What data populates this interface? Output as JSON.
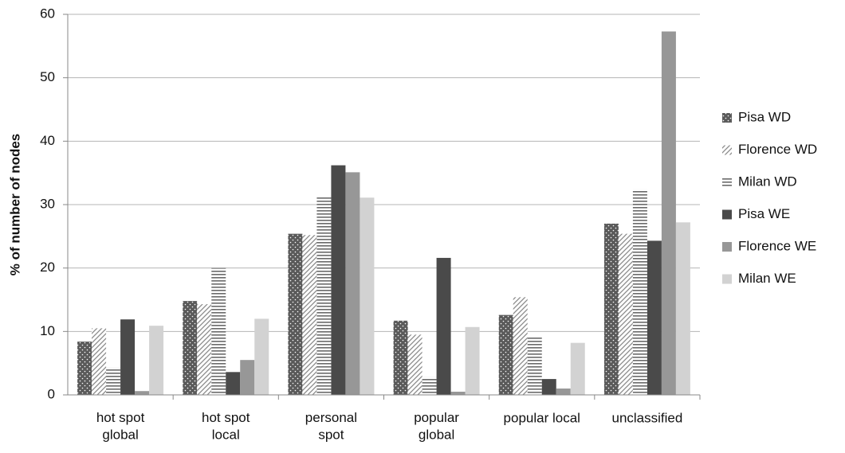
{
  "chart_data": {
    "type": "bar",
    "y_label": "% of number of nodes",
    "categories": [
      "hot spot\nglobal",
      "hot spot\nlocal",
      "personal\nspot",
      "popular\nglobal",
      "popular local",
      "unclassified"
    ],
    "series": [
      {
        "name": "Pisa WD",
        "color": "#5a5a5a",
        "pattern": "dots",
        "values": [
          8.4,
          14.8,
          25.4,
          11.7,
          12.6,
          27.0
        ]
      },
      {
        "name": "Florence WD",
        "color": "#8a8a8a",
        "pattern": "diagonal",
        "values": [
          10.5,
          14.3,
          25.2,
          9.5,
          15.4,
          25.4
        ]
      },
      {
        "name": "Milan WD",
        "color": "#6a6a6a",
        "pattern": "horizontal",
        "values": [
          4.3,
          20.0,
          31.3,
          2.8,
          9.2,
          32.4
        ]
      },
      {
        "name": "Pisa WE",
        "color": "#4a4a4a",
        "values": [
          11.9,
          3.6,
          36.2,
          21.6,
          2.5,
          24.3
        ]
      },
      {
        "name": "Florence WE",
        "color": "#979797",
        "values": [
          0.6,
          5.5,
          35.1,
          0.5,
          1.0,
          57.3
        ]
      },
      {
        "name": "Milan WE",
        "color": "#d2d2d2",
        "values": [
          10.9,
          12.0,
          31.1,
          10.7,
          8.2,
          27.2
        ]
      }
    ],
    "ylim": [
      0,
      60
    ],
    "yticks": [
      0,
      10,
      20,
      30,
      40,
      50,
      60
    ],
    "grid": true,
    "legend": "right"
  }
}
